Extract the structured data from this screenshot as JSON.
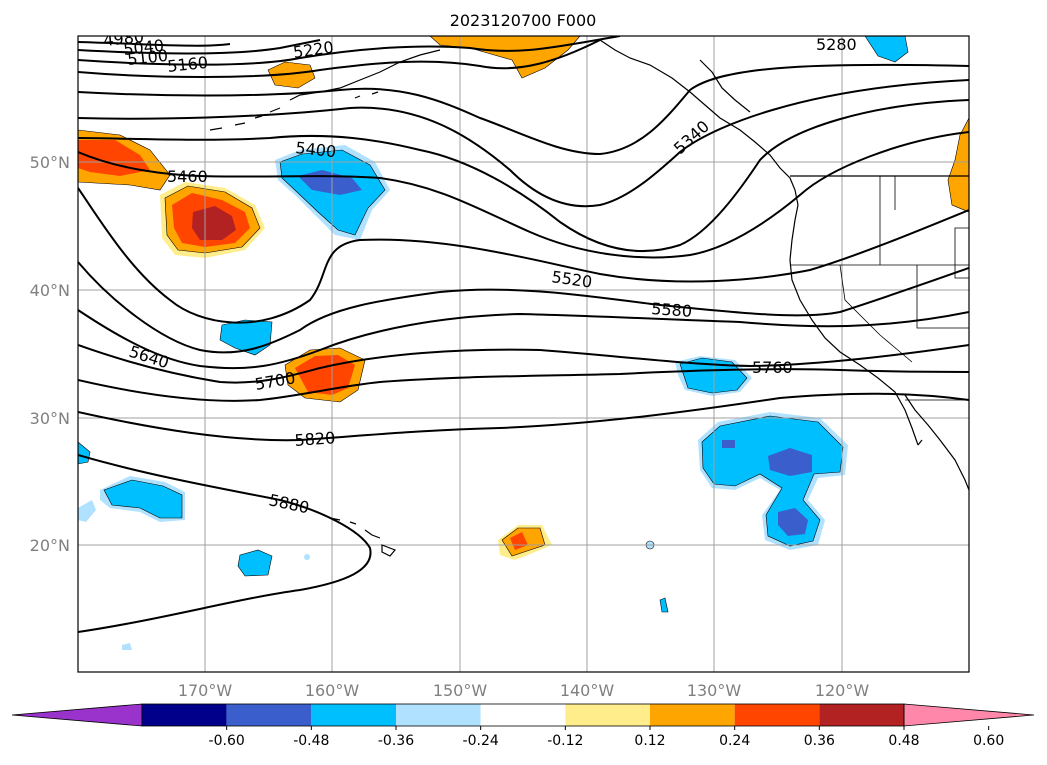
{
  "title": "2023120700 F000",
  "lat_labels": [
    "50°N",
    "40°N",
    "30°N",
    "20°N"
  ],
  "lon_labels": [
    "170°W",
    "160°W",
    "150°W",
    "140°W",
    "130°W",
    "120°W"
  ],
  "contour_labels": [
    "4980",
    "5040",
    "5100",
    "5160",
    "5220",
    "5280",
    "5340",
    "5400",
    "5460",
    "5520",
    "5580",
    "5640",
    "5700",
    "5760",
    "5820",
    "5880"
  ],
  "colorbar": {
    "ticks": [
      "-0.60",
      "-0.48",
      "-0.36",
      "-0.24",
      "-0.12",
      "0.12",
      "0.24",
      "0.36",
      "0.48",
      "0.60"
    ],
    "colors": [
      "#9933cc",
      "#00008b",
      "#3a5fcd",
      "#00bfff",
      "#b0e2ff",
      "#ffffff",
      "#ffec8b",
      "#ffa500",
      "#ff4500",
      "#b22222",
      "#ff88aa"
    ]
  },
  "colors": {
    "positive_strong": "#b22222",
    "positive_mid": "#ff4500",
    "positive": "#ffa500",
    "positive_weak": "#ffec8b",
    "negative_weak": "#b0e2ff",
    "negative": "#00bfff",
    "negative_mid": "#3a5fcd"
  }
}
